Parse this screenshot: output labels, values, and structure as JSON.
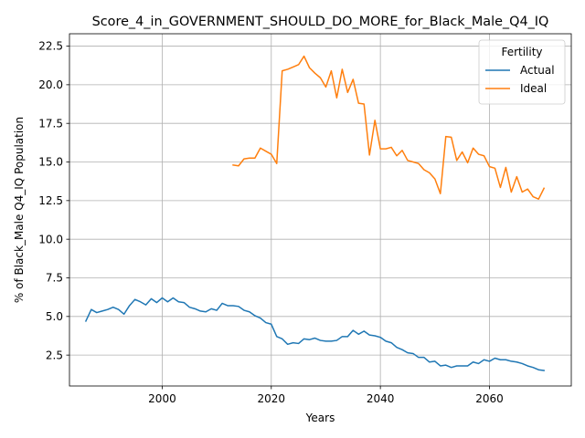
{
  "chart_data": {
    "type": "line",
    "title": "Score_4_in_GOVERNMENT_SHOULD_DO_MORE_for_Black_Male_Q4_IQ",
    "xlabel": "Years",
    "ylabel": "% of Black_Male Q4_IQ Population",
    "xlim": [
      1983,
      2075
    ],
    "ylim": [
      0.5,
      23.3
    ],
    "xticks": [
      2000,
      2020,
      2040,
      2060
    ],
    "yticks": [
      2.5,
      5.0,
      7.5,
      10.0,
      12.5,
      15.0,
      17.5,
      20.0,
      22.5
    ],
    "xtick_labels": [
      "2000",
      "2020",
      "2040",
      "2060"
    ],
    "ytick_labels": [
      "2.5",
      "5.0",
      "7.5",
      "10.0",
      "12.5",
      "15.0",
      "17.5",
      "20.0",
      "22.5"
    ],
    "grid": true,
    "legend": {
      "title": "Fertility",
      "position": "top-right"
    },
    "series": [
      {
        "name": "Actual",
        "color": "#1f77b4",
        "x": [
          1986,
          1987,
          1988,
          1989,
          1990,
          1991,
          1992,
          1993,
          1994,
          1995,
          1996,
          1997,
          1998,
          1999,
          2000,
          2001,
          2002,
          2003,
          2004,
          2005,
          2006,
          2007,
          2008,
          2009,
          2010,
          2011,
          2012,
          2013,
          2014,
          2015,
          2016,
          2017,
          2018,
          2019,
          2020,
          2021,
          2022,
          2023,
          2024,
          2025,
          2026,
          2027,
          2028,
          2029,
          2030,
          2031,
          2032,
          2033,
          2034,
          2035,
          2036,
          2037,
          2038,
          2039,
          2040,
          2041,
          2042,
          2043,
          2044,
          2045,
          2046,
          2047,
          2048,
          2049,
          2050,
          2051,
          2052,
          2053,
          2054,
          2055,
          2056,
          2057,
          2058,
          2059,
          2060,
          2061,
          2062,
          2063,
          2064,
          2065,
          2066,
          2067,
          2068,
          2069,
          2070
        ],
        "values": [
          4.7,
          5.45,
          5.25,
          5.35,
          5.45,
          5.6,
          5.45,
          5.15,
          5.7,
          6.1,
          5.95,
          5.75,
          6.15,
          5.9,
          6.2,
          5.95,
          6.2,
          5.95,
          5.9,
          5.6,
          5.5,
          5.35,
          5.3,
          5.5,
          5.4,
          5.85,
          5.7,
          5.7,
          5.65,
          5.4,
          5.3,
          5.05,
          4.9,
          4.6,
          4.5,
          3.7,
          3.55,
          3.2,
          3.3,
          3.25,
          3.55,
          3.5,
          3.6,
          3.45,
          3.4,
          3.4,
          3.45,
          3.7,
          3.7,
          4.1,
          3.85,
          4.05,
          3.8,
          3.75,
          3.65,
          3.4,
          3.3,
          3.0,
          2.85,
          2.65,
          2.6,
          2.35,
          2.35,
          2.05,
          2.1,
          1.8,
          1.85,
          1.7,
          1.8,
          1.8,
          1.8,
          2.05,
          1.95,
          2.2,
          2.1,
          2.3,
          2.2,
          2.2,
          2.1,
          2.05,
          1.95,
          1.8,
          1.7,
          1.55,
          1.5
        ]
      },
      {
        "name": "Ideal",
        "color": "#ff7f0e",
        "x": [
          2013,
          2014,
          2015,
          2016,
          2017,
          2018,
          2019,
          2020,
          2021,
          2022,
          2023,
          2024,
          2025,
          2026,
          2027,
          2028,
          2029,
          2030,
          2031,
          2032,
          2033,
          2034,
          2035,
          2036,
          2037,
          2038,
          2039,
          2040,
          2041,
          2042,
          2043,
          2044,
          2045,
          2046,
          2047,
          2048,
          2049,
          2050,
          2051,
          2052,
          2053,
          2054,
          2055,
          2056,
          2057,
          2058,
          2059,
          2060,
          2061,
          2062,
          2063,
          2064,
          2065,
          2066,
          2067,
          2068,
          2069,
          2070
        ],
        "values": [
          14.8,
          14.75,
          15.2,
          15.25,
          15.25,
          15.9,
          15.7,
          15.5,
          14.9,
          20.9,
          21.0,
          21.15,
          21.3,
          21.85,
          21.1,
          20.75,
          20.45,
          19.85,
          20.9,
          19.15,
          21.0,
          19.5,
          20.35,
          18.8,
          18.75,
          15.45,
          17.7,
          15.85,
          15.85,
          15.95,
          15.4,
          15.75,
          15.1,
          15.0,
          14.9,
          14.5,
          14.3,
          13.9,
          12.95,
          16.65,
          16.6,
          15.1,
          15.65,
          14.95,
          15.9,
          15.5,
          15.4,
          14.7,
          14.6,
          13.35,
          14.65,
          13.05,
          14.05,
          13.05,
          13.25,
          12.75,
          12.6,
          13.3
        ]
      }
    ]
  }
}
